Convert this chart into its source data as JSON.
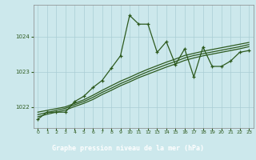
{
  "title": "Graphe pression niveau de la mer (hPa)",
  "bg_color": "#cce8ec",
  "grid_color": "#aacdd4",
  "line_color": "#2d5a1e",
  "label_bg": "#3a6b2a",
  "label_text_color": "#ffffff",
  "ylim": [
    1021.4,
    1024.9
  ],
  "xlim": [
    -0.5,
    23.5
  ],
  "yticks": [
    1022,
    1023,
    1024
  ],
  "xticks": [
    0,
    1,
    2,
    3,
    4,
    5,
    6,
    7,
    8,
    9,
    10,
    11,
    12,
    13,
    14,
    15,
    16,
    17,
    18,
    19,
    20,
    21,
    22,
    23
  ],
  "main_series": [
    1021.65,
    1021.85,
    1021.85,
    1021.85,
    1022.15,
    1022.3,
    1022.55,
    1022.75,
    1023.1,
    1023.45,
    1024.6,
    1024.35,
    1024.35,
    1023.55,
    1023.85,
    1023.2,
    1023.65,
    1022.85,
    1023.7,
    1023.15,
    1023.15,
    1023.3,
    1023.55,
    1023.6
  ],
  "line2": [
    1021.85,
    1021.9,
    1021.95,
    1022.0,
    1022.1,
    1022.2,
    1022.33,
    1022.47,
    1022.6,
    1022.73,
    1022.84,
    1022.96,
    1023.07,
    1023.17,
    1023.27,
    1023.36,
    1023.46,
    1023.52,
    1023.58,
    1023.63,
    1023.68,
    1023.73,
    1023.78,
    1023.83
  ],
  "line3": [
    1021.78,
    1021.84,
    1021.9,
    1021.96,
    1022.06,
    1022.15,
    1022.27,
    1022.41,
    1022.53,
    1022.66,
    1022.77,
    1022.89,
    1023.0,
    1023.1,
    1023.2,
    1023.29,
    1023.39,
    1023.46,
    1023.51,
    1023.56,
    1023.61,
    1023.66,
    1023.71,
    1023.77
  ],
  "line4": [
    1021.72,
    1021.79,
    1021.85,
    1021.91,
    1022.01,
    1022.1,
    1022.21,
    1022.35,
    1022.47,
    1022.6,
    1022.71,
    1022.83,
    1022.93,
    1023.03,
    1023.13,
    1023.22,
    1023.32,
    1023.39,
    1023.45,
    1023.5,
    1023.55,
    1023.6,
    1023.65,
    1023.71
  ]
}
